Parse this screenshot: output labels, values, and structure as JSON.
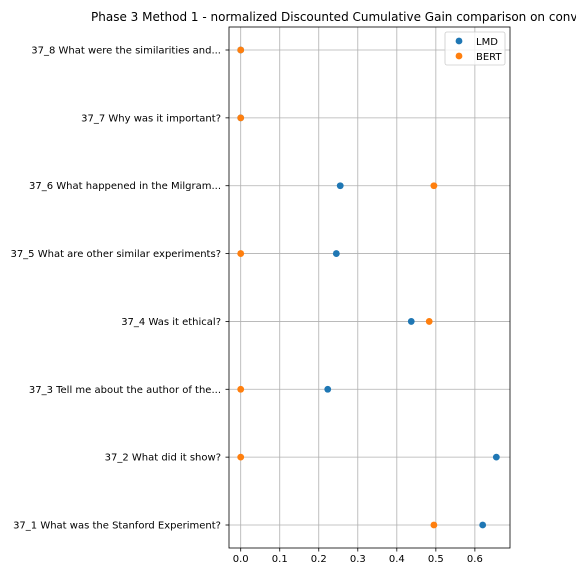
{
  "chart_data": {
    "type": "scatter",
    "title": "Phase 3 Method 1 - normalized Discounted Cumulative Gain comparison on conv",
    "xlabel": "",
    "ylabel": "",
    "xlim": [
      -0.03,
      0.69
    ],
    "xticks": [
      0.0,
      0.1,
      0.2,
      0.3,
      0.4,
      0.5,
      0.6
    ],
    "xtick_labels": [
      "0.0",
      "0.1",
      "0.2",
      "0.3",
      "0.4",
      "0.5",
      "0.6"
    ],
    "categories": [
      "37_1 What was the Stanford Experiment?",
      "37_2 What did it show?",
      "37_3 Tell me about the author of the...",
      "37_4 Was it ethical?",
      "37_5 What are other similar experiments?",
      "37_6 What happened in the Milgram...",
      "37_7 Why was it important?",
      "37_8 What were the similarities and..."
    ],
    "grid": true,
    "legend_position": "upper right",
    "series": [
      {
        "name": "LMD",
        "color": "#1f77b4",
        "values": [
          0.62,
          0.655,
          0.223,
          0.437,
          0.245,
          0.255,
          0.0,
          0.0
        ]
      },
      {
        "name": "BERT",
        "color": "#ff7f0e",
        "values": [
          0.495,
          0.0,
          0.0,
          0.483,
          0.0,
          0.495,
          0.0,
          0.0
        ]
      }
    ]
  }
}
